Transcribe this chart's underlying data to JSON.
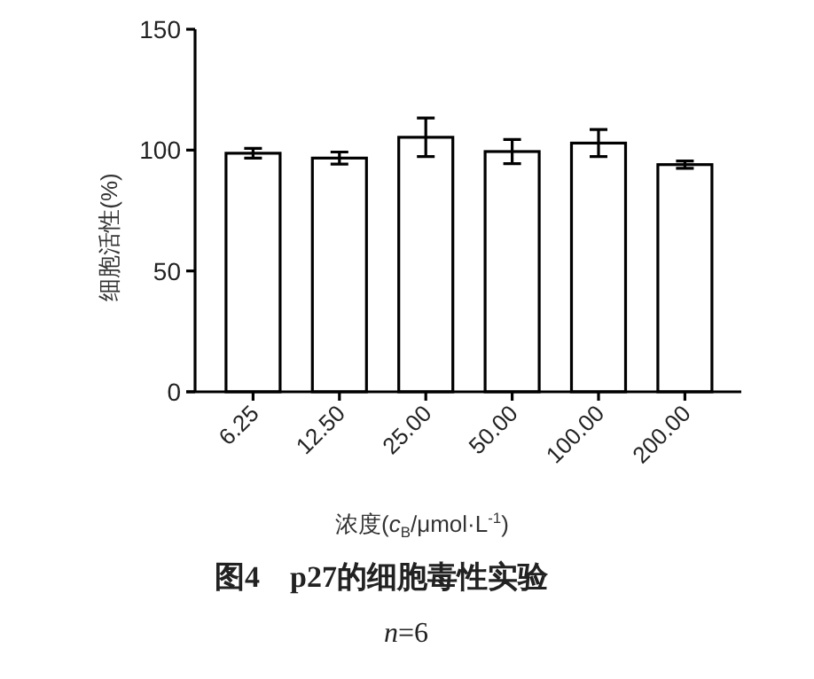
{
  "chart_data": {
    "type": "bar",
    "xlabel": "浓度(*c*$_{B}$/μmol·L$^{-1}$)",
    "ylabel": "细胞活性(%)",
    "categories": [
      "6.25",
      "12.50",
      "25.00",
      "50.00",
      "100.00",
      "200.00"
    ],
    "values": [
      98.7,
      96.7,
      105.3,
      99.4,
      102.9,
      94
    ],
    "errors": [
      2,
      2.5,
      8,
      5,
      5.6,
      1.5
    ],
    "color": "#ffffff",
    "ylim": [
      0,
      150
    ],
    "yticks": [
      0,
      50,
      100,
      150
    ],
    "annotations": [
      "图4　**p27**的细胞毒性实验",
      "*n*=6"
    ]
  }
}
